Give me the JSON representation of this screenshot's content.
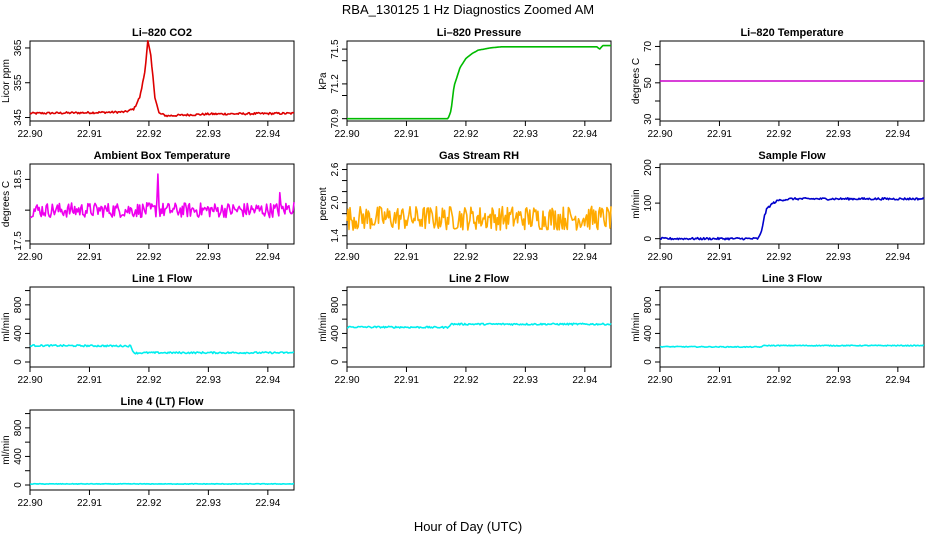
{
  "title": "RBA_130125  1 Hz Diagnostics Zoomed AM",
  "xlabel": "Hour of Day (UTC)",
  "chart_data": [
    {
      "type": "line",
      "title": "Li–820 CO2",
      "ylabel": "Licor ppm",
      "color": "#dd0000",
      "xlim": [
        22.9,
        22.9444
      ],
      "ylim": [
        344,
        367
      ],
      "xticks": [
        22.9,
        22.91,
        22.92,
        22.93,
        22.94
      ],
      "xtick_labels": [
        "22.90",
        "22.91",
        "22.92",
        "22.93",
        "22.94"
      ],
      "yticks": [
        345,
        355,
        365
      ],
      "ytick_labels": [
        "345",
        "355",
        "365"
      ],
      "series": [
        {
          "name": "CO2",
          "x": [
            22.9,
            22.91,
            22.916,
            22.9175,
            22.9185,
            22.9193,
            22.9198,
            22.9203,
            22.921,
            22.9217,
            22.923,
            22.93,
            22.9444
          ],
          "y": [
            346.2,
            346.4,
            346.6,
            347.5,
            351,
            358,
            367,
            363,
            351,
            346.2,
            345.5,
            346,
            346.2
          ],
          "noise": 0.3
        }
      ]
    },
    {
      "type": "line",
      "title": "Li–820 Pressure",
      "ylabel": "kPa",
      "color": "#00bb00",
      "xlim": [
        22.9,
        22.9444
      ],
      "ylim": [
        70.88,
        71.57
      ],
      "xticks": [
        22.9,
        22.91,
        22.92,
        22.93,
        22.94
      ],
      "xtick_labels": [
        "22.90",
        "22.91",
        "22.92",
        "22.93",
        "22.94"
      ],
      "yticks": [
        70.9,
        71.2,
        71.5
      ],
      "ytick_labels": [
        "70.9",
        "71.2",
        "71.5"
      ],
      "extra_ticks": [
        71.1,
        71.4
      ],
      "series": [
        {
          "name": "Pressure",
          "x": [
            22.9,
            22.917,
            22.9175,
            22.918,
            22.919,
            22.92,
            22.921,
            22.922,
            22.924,
            22.926,
            22.93,
            22.942,
            22.9425,
            22.943,
            22.9444
          ],
          "y": [
            70.9,
            70.9,
            70.97,
            71.18,
            71.34,
            71.42,
            71.46,
            71.49,
            71.51,
            71.52,
            71.52,
            71.52,
            71.5,
            71.53,
            71.53
          ],
          "noise": 0.0
        }
      ]
    },
    {
      "type": "line",
      "title": "Li–820 Temperature",
      "ylabel": "degrees C",
      "color": "#cc00cc",
      "xlim": [
        22.9,
        22.9444
      ],
      "ylim": [
        29,
        73
      ],
      "xticks": [
        22.9,
        22.91,
        22.92,
        22.93,
        22.94
      ],
      "xtick_labels": [
        "22.90",
        "22.91",
        "22.92",
        "22.93",
        "22.94"
      ],
      "yticks": [
        30,
        50,
        70
      ],
      "ytick_labels": [
        "30",
        "50",
        "70"
      ],
      "extra_ticks": [
        40,
        60
      ],
      "series": [
        {
          "name": "Temperature",
          "x": [
            22.9,
            22.9444
          ],
          "y": [
            51,
            51
          ],
          "noise": 0.0
        }
      ]
    },
    {
      "type": "line",
      "title": "Ambient Box Temperature",
      "ylabel": "degrees C",
      "color": "#ee00ee",
      "xlim": [
        22.9,
        22.9444
      ],
      "ylim": [
        17.45,
        18.75
      ],
      "xticks": [
        22.9,
        22.91,
        22.92,
        22.93,
        22.94
      ],
      "xtick_labels": [
        "22.90",
        "22.91",
        "22.92",
        "22.93",
        "22.94"
      ],
      "yticks": [
        17.5,
        18.5
      ],
      "ytick_labels": [
        "17.5",
        "18.5"
      ],
      "extra_ticks": [
        18.0
      ],
      "series": [
        {
          "name": "Ambient",
          "x": [
            22.9,
            22.915,
            22.9213,
            22.9215,
            22.9217,
            22.9419,
            22.942,
            22.9421,
            22.9444
          ],
          "y": [
            18.0,
            18.0,
            18.0,
            18.7,
            18.0,
            18.0,
            18.3,
            18.0,
            18.05
          ],
          "noise": 0.12
        }
      ]
    },
    {
      "type": "line",
      "title": "Gas Stream RH",
      "ylabel": "percent",
      "color": "#ffaa00",
      "xlim": [
        22.9,
        22.9444
      ],
      "ylim": [
        1.25,
        2.7
      ],
      "xticks": [
        22.9,
        22.91,
        22.92,
        22.93,
        22.94
      ],
      "xtick_labels": [
        "22.90",
        "22.91",
        "22.92",
        "22.93",
        "22.94"
      ],
      "yticks": [
        1.4,
        2.0,
        2.6
      ],
      "ytick_labels": [
        "1.4",
        "2.0",
        "2.6"
      ],
      "extra_ticks": [
        1.6,
        1.8,
        2.2,
        2.4
      ],
      "series": [
        {
          "name": "RH",
          "x": [
            22.9,
            22.9444
          ],
          "y": [
            1.72,
            1.72
          ],
          "noise": 0.22
        }
      ]
    },
    {
      "type": "line",
      "title": "Sample Flow",
      "ylabel": "ml/min",
      "color": "#0000cc",
      "xlim": [
        22.9,
        22.9444
      ],
      "ylim": [
        -15,
        210
      ],
      "xticks": [
        22.9,
        22.91,
        22.92,
        22.93,
        22.94
      ],
      "xtick_labels": [
        "22.90",
        "22.91",
        "22.92",
        "22.93",
        "22.94"
      ],
      "yticks": [
        0,
        100,
        200
      ],
      "ytick_labels": [
        "0",
        "100",
        "200"
      ],
      "series": [
        {
          "name": "Sample",
          "x": [
            22.9,
            22.9165,
            22.917,
            22.9175,
            22.918,
            22.919,
            22.92,
            22.922,
            22.93,
            22.9444
          ],
          "y": [
            0,
            0,
            15,
            60,
            85,
            100,
            108,
            112,
            112,
            112
          ],
          "noise": 3
        }
      ]
    },
    {
      "type": "line",
      "title": "Line 1 Flow",
      "ylabel": "ml/min",
      "color": "#00eeee",
      "xlim": [
        22.9,
        22.9444
      ],
      "ylim": [
        -70,
        1050
      ],
      "xticks": [
        22.9,
        22.91,
        22.92,
        22.93,
        22.94
      ],
      "xtick_labels": [
        "22.90",
        "22.91",
        "22.92",
        "22.93",
        "22.94"
      ],
      "yticks": [
        0,
        400,
        800
      ],
      "ytick_labels": [
        "0",
        "400",
        "800"
      ],
      "extra_ticks": [
        200,
        600,
        1000
      ],
      "series": [
        {
          "name": "Line 1",
          "x": [
            22.9,
            22.9169,
            22.9175,
            22.92,
            22.93,
            22.9444
          ],
          "y": [
            230,
            225,
            125,
            130,
            130,
            130
          ],
          "noise": 12
        }
      ]
    },
    {
      "type": "line",
      "title": "Line 2 Flow",
      "ylabel": "ml/min",
      "color": "#00eeee",
      "xlim": [
        22.9,
        22.9444
      ],
      "ylim": [
        -70,
        1050
      ],
      "xticks": [
        22.9,
        22.91,
        22.92,
        22.93,
        22.94
      ],
      "xtick_labels": [
        "22.90",
        "22.91",
        "22.92",
        "22.93",
        "22.94"
      ],
      "yticks": [
        0,
        400,
        800
      ],
      "ytick_labels": [
        "0",
        "400",
        "800"
      ],
      "extra_ticks": [
        200,
        600,
        1000
      ],
      "series": [
        {
          "name": "Line 2",
          "x": [
            22.9,
            22.9169,
            22.9175,
            22.93,
            22.9444
          ],
          "y": [
            490,
            485,
            530,
            530,
            530
          ],
          "noise": 12
        }
      ]
    },
    {
      "type": "line",
      "title": "Line 3 Flow",
      "ylabel": "ml/min",
      "color": "#00eeee",
      "xlim": [
        22.9,
        22.9444
      ],
      "ylim": [
        -70,
        1050
      ],
      "xticks": [
        22.9,
        22.91,
        22.92,
        22.93,
        22.94
      ],
      "xtick_labels": [
        "22.90",
        "22.91",
        "22.92",
        "22.93",
        "22.94"
      ],
      "yticks": [
        0,
        400,
        800
      ],
      "ytick_labels": [
        "0",
        "400",
        "800"
      ],
      "extra_ticks": [
        200,
        600,
        1000
      ],
      "series": [
        {
          "name": "Line 3",
          "x": [
            22.9,
            22.9169,
            22.9175,
            22.93,
            22.9444
          ],
          "y": [
            215,
            210,
            230,
            230,
            230
          ],
          "noise": 6
        }
      ]
    },
    {
      "type": "line",
      "title": "Line 4 (LT) Flow",
      "ylabel": "ml/min",
      "color": "#00eeee",
      "xlim": [
        22.9,
        22.9444
      ],
      "ylim": [
        -70,
        1050
      ],
      "xticks": [
        22.9,
        22.91,
        22.92,
        22.93,
        22.94
      ],
      "xtick_labels": [
        "22.90",
        "22.91",
        "22.92",
        "22.93",
        "22.94"
      ],
      "yticks": [
        0,
        400,
        800
      ],
      "ytick_labels": [
        "0",
        "400",
        "800"
      ],
      "extra_ticks": [
        200,
        600,
        1000
      ],
      "series": [
        {
          "name": "Line 4",
          "x": [
            22.9,
            22.9444
          ],
          "y": [
            15,
            15
          ],
          "noise": 4
        }
      ]
    }
  ]
}
